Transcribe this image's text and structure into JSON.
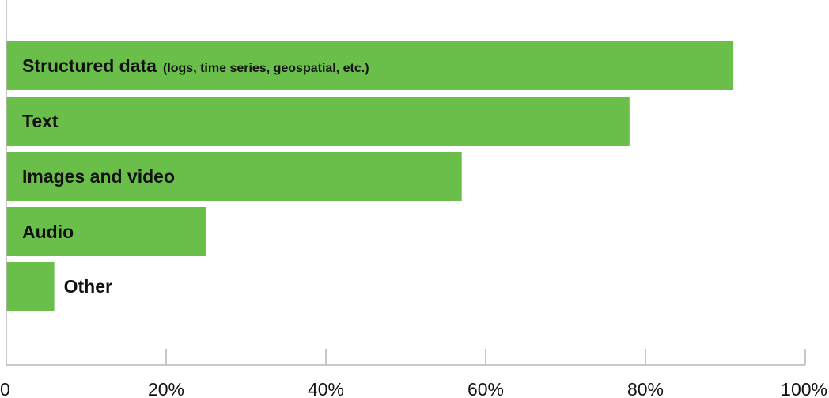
{
  "chart_data": {
    "type": "bar",
    "orientation": "horizontal",
    "categories": [
      {
        "label": "Structured data",
        "note": "(logs, time series, geospatial, etc.)"
      },
      {
        "label": "Text",
        "note": ""
      },
      {
        "label": "Images and video",
        "note": ""
      },
      {
        "label": "Audio",
        "note": ""
      },
      {
        "label": "Other",
        "note": ""
      }
    ],
    "values": [
      91,
      78,
      57,
      25,
      6
    ],
    "xlim": [
      0,
      100
    ],
    "xticks": [
      0,
      20,
      40,
      60,
      80,
      100
    ],
    "xtick_labels": [
      "0",
      "20%",
      "40%",
      "60%",
      "80%",
      "100%"
    ],
    "grid": false,
    "colors": {
      "bar": "#6abf4b",
      "axis": "#b7b7b7",
      "text": "#111111"
    }
  }
}
